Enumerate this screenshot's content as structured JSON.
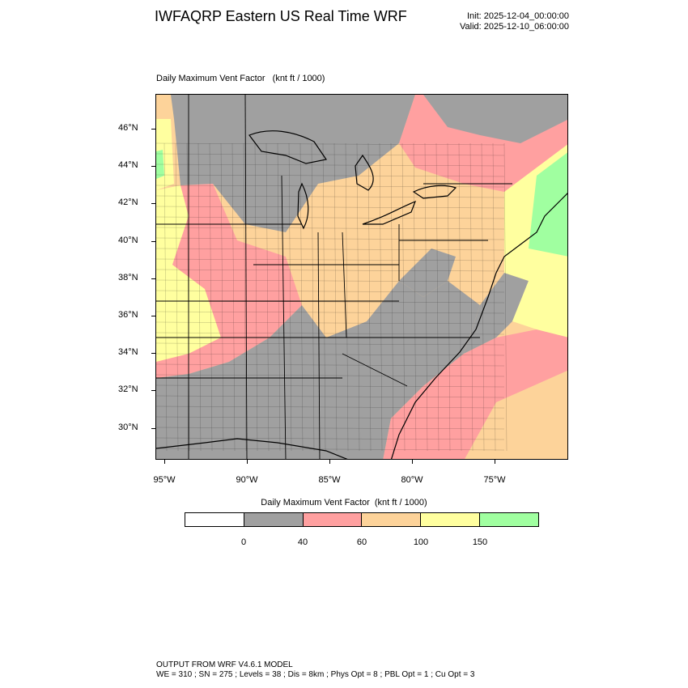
{
  "header": {
    "title": "IWFAQRP Eastern US Real Time WRF",
    "init": "Init: 2025-12-04_00:00:00",
    "valid": "Valid: 2025-12-10_06:00:00"
  },
  "plot": {
    "title": "Daily Maximum Vent Factor   (knt ft / 1000)",
    "lat_labels": [
      "46°N",
      "44°N",
      "42°N",
      "40°N",
      "38°N",
      "36°N",
      "34°N",
      "32°N",
      "30°N"
    ],
    "lon_labels": [
      "95°W",
      "90°W",
      "85°W",
      "80°W",
      "75°W"
    ]
  },
  "colorbar": {
    "title": "Daily Maximum Vent Factor  (knt ft / 1000)",
    "colors": [
      "#ffffff",
      "#a0a0a0",
      "#ffa0a0",
      "#fdd39a",
      "#ffff9f",
      "#a0ffa0"
    ],
    "labels": [
      "0",
      "40",
      "60",
      "100",
      "150"
    ]
  },
  "footer": {
    "line1": "OUTPUT FROM WRF V4.6.1 MODEL",
    "line2": "WE = 310 ; SN = 275 ; Levels = 38 ; Dis = 8km ; Phys Opt = 8 ; PBL Opt = 1 ; Cu Opt = 3"
  }
}
